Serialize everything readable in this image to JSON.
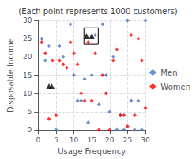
{
  "chart_data": {
    "type": "scatter",
    "title": "(Each point represents 1000 customers)",
    "xlabel": "Usage Frequency",
    "ylabel": "Disposable Income",
    "xlim": [
      0,
      30
    ],
    "ylim": [
      0,
      30
    ],
    "xticks": [
      0,
      5,
      10,
      15,
      20,
      25,
      30
    ],
    "yticks": [
      0,
      5,
      10,
      15,
      20,
      25,
      30
    ],
    "grid": true,
    "legend": "right",
    "marker": "diamond",
    "series": [
      {
        "name": "Men",
        "color": "#4472C4",
        "x": [
          1,
          2,
          3,
          5,
          6,
          7,
          9,
          10,
          11,
          12,
          13,
          14,
          15,
          16,
          17,
          18,
          19,
          20,
          21,
          22,
          23,
          24,
          25,
          26,
          27,
          28,
          29,
          30
        ],
        "values": [
          25,
          19,
          23,
          0,
          23,
          20,
          29,
          15,
          8,
          8,
          14,
          2,
          15,
          26,
          7,
          29,
          15,
          5,
          20,
          0,
          4,
          0,
          30,
          8,
          0,
          8,
          0,
          30
        ]
      },
      {
        "name": "Women",
        "color": "#FF0000",
        "x": [
          1,
          2,
          3,
          4,
          5,
          6,
          7,
          8,
          9,
          10,
          11,
          12,
          13,
          14,
          15,
          16,
          17,
          18,
          19,
          20,
          21,
          22,
          23,
          24,
          25,
          26,
          27,
          28,
          29,
          30
        ],
        "values": [
          24,
          21,
          3,
          19,
          4,
          19,
          18,
          17,
          24,
          21,
          18,
          10,
          8,
          24,
          8,
          21,
          0,
          15,
          10,
          0,
          19,
          22,
          4,
          4,
          1,
          26,
          4,
          25,
          19,
          6
        ]
      }
    ],
    "highlight_points": {
      "marker": "triangle",
      "color": "#000000",
      "x": [
        13.5,
        15.0,
        3.0,
        3.8
      ],
      "values": [
        25.8,
        25.8,
        12.0,
        12.0
      ]
    },
    "highlight_box": {
      "x": 12.8,
      "y": 23.5,
      "width": 4.0,
      "height": 4.5,
      "color": "#000000"
    }
  }
}
